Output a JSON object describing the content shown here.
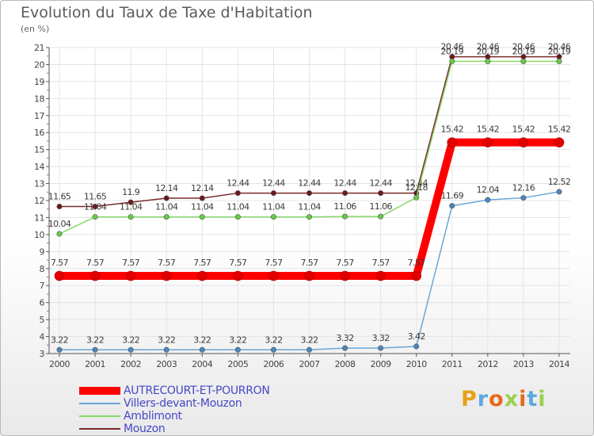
{
  "title": "Evolution du Taux de Taxe d'Habitation",
  "unit_label": "(en %)",
  "brand": {
    "text": "Proxiti",
    "colors": [
      "#e8a21a",
      "#5aa8e0",
      "#e86a1a",
      "#9bd04c",
      "#e86a1a",
      "#5aa8e0",
      "#9bd04c"
    ]
  },
  "chart_data": {
    "type": "line",
    "title": "Evolution du Taux de Taxe d'Habitation",
    "ylabel": "(en %)",
    "xlabel": "",
    "ylim": [
      3,
      21
    ],
    "yticks": [
      3,
      4,
      5,
      6,
      7,
      8,
      9,
      10,
      11,
      12,
      13,
      14,
      15,
      16,
      17,
      18,
      19,
      20,
      21
    ],
    "x": [
      "2000",
      "2001",
      "2002",
      "2003",
      "2004",
      "2005",
      "2006",
      "2007",
      "2008",
      "2009",
      "2010",
      "2011",
      "2012",
      "2013",
      "2014"
    ],
    "legend_position": "bottom-left",
    "series": [
      {
        "name": "Mouzon",
        "color": "#7a2a2a",
        "marker": "#6a1a1a",
        "values": [
          11.65,
          11.65,
          11.9,
          12.14,
          12.14,
          12.44,
          12.44,
          12.44,
          12.44,
          12.44,
          12.44,
          20.46,
          20.46,
          20.46,
          20.46
        ],
        "labels": [
          "11.65",
          "11.65",
          "11.9",
          "12.14",
          "12.14",
          "12.44",
          "12.44",
          "12.44",
          "12.44",
          "12.44",
          "12.44",
          "20.46",
          "20.46",
          "20.46",
          "20.46"
        ]
      },
      {
        "name": "Amblimont",
        "color": "#88d86a",
        "marker": "#66cc44",
        "values": [
          10.04,
          11.04,
          11.04,
          11.04,
          11.04,
          11.04,
          11.04,
          11.04,
          11.06,
          11.06,
          12.18,
          20.19,
          20.19,
          20.19,
          20.19
        ],
        "labels": [
          "10.04",
          "11.04",
          "11.04",
          "11.04",
          "11.04",
          "11.04",
          "11.04",
          "11.04",
          "11.06",
          "11.06",
          "12.18",
          "20.19",
          "20.19",
          "20.19",
          "20.19"
        ]
      },
      {
        "name": "Villers-devant-Mouzon",
        "color": "#6aa6d6",
        "marker": "#4a86c0",
        "values": [
          3.22,
          3.22,
          3.22,
          3.22,
          3.22,
          3.22,
          3.22,
          3.22,
          3.32,
          3.32,
          3.42,
          11.69,
          12.04,
          12.16,
          12.52
        ],
        "labels": [
          "3.22",
          "3.22",
          "3.22",
          "3.22",
          "3.22",
          "3.22",
          "3.22",
          "3.22",
          "3.32",
          "3.32",
          "3.42",
          "11.69",
          "12.04",
          "12.16",
          "12.52"
        ]
      },
      {
        "name": "AUTRECOURT-ET-POURRON",
        "color": "#ff0000",
        "marker": "#e00000",
        "values": [
          7.57,
          7.57,
          7.57,
          7.57,
          7.57,
          7.57,
          7.57,
          7.57,
          7.57,
          7.57,
          7.57,
          15.42,
          15.42,
          15.42,
          15.42
        ],
        "labels": [
          "7.57",
          "7.57",
          "7.57",
          "7.57",
          "7.57",
          "7.57",
          "7.57",
          "7.57",
          "7.57",
          "7.57",
          "7.57",
          "15.42",
          "15.42",
          "15.42",
          "15.42"
        ]
      }
    ],
    "legend": [
      {
        "name": "AUTRECOURT-ET-POURRON",
        "color": "#ff0000",
        "thick": true
      },
      {
        "name": "Villers-devant-Mouzon",
        "color": "#6aa6d6",
        "thick": false
      },
      {
        "name": "Amblimont",
        "color": "#88d86a",
        "thick": false
      },
      {
        "name": "Mouzon",
        "color": "#7a2a2a",
        "thick": false
      }
    ]
  }
}
